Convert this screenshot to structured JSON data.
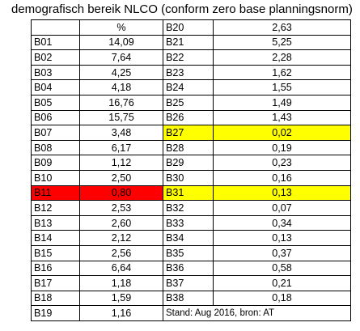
{
  "title": "demografisch bereik NLCO (conform zero base planningsnorm)",
  "header": {
    "left_code": "",
    "left_value": "%",
    "right_code": "B20",
    "right_value": "2,63"
  },
  "rows": [
    {
      "left_code": "B01",
      "left_value": "14,09",
      "right_code": "B21",
      "right_value": "5,25",
      "highlight_left": "",
      "highlight_right": ""
    },
    {
      "left_code": "B02",
      "left_value": "7,64",
      "right_code": "B22",
      "right_value": "2,28",
      "highlight_left": "",
      "highlight_right": ""
    },
    {
      "left_code": "B03",
      "left_value": "4,25",
      "right_code": "B23",
      "right_value": "1,62",
      "highlight_left": "",
      "highlight_right": ""
    },
    {
      "left_code": "B04",
      "left_value": "4,18",
      "right_code": "B24",
      "right_value": "1,55",
      "highlight_left": "",
      "highlight_right": ""
    },
    {
      "left_code": "B05",
      "left_value": "16,76",
      "right_code": "B25",
      "right_value": "1,49",
      "highlight_left": "",
      "highlight_right": ""
    },
    {
      "left_code": "B06",
      "left_value": "15,75",
      "right_code": "B26",
      "right_value": "1,43",
      "highlight_left": "",
      "highlight_right": ""
    },
    {
      "left_code": "B07",
      "left_value": "3,48",
      "right_code": "B27",
      "right_value": "0,02",
      "highlight_left": "",
      "highlight_right": "yellow"
    },
    {
      "left_code": "B08",
      "left_value": "6,17",
      "right_code": "B28",
      "right_value": "0,19",
      "highlight_left": "",
      "highlight_right": ""
    },
    {
      "left_code": "B09",
      "left_value": "1,12",
      "right_code": "B29",
      "right_value": "0,23",
      "highlight_left": "",
      "highlight_right": ""
    },
    {
      "left_code": "B10",
      "left_value": "2,50",
      "right_code": "B30",
      "right_value": "0,16",
      "highlight_left": "",
      "highlight_right": ""
    },
    {
      "left_code": "B11",
      "left_value": "0,80",
      "right_code": "B31",
      "right_value": "0,13",
      "highlight_left": "red",
      "highlight_right": "yellow"
    },
    {
      "left_code": "B12",
      "left_value": "2,53",
      "right_code": "B32",
      "right_value": "0,07",
      "highlight_left": "",
      "highlight_right": ""
    },
    {
      "left_code": "B13",
      "left_value": "2,60",
      "right_code": "B33",
      "right_value": "0,34",
      "highlight_left": "",
      "highlight_right": ""
    },
    {
      "left_code": "B14",
      "left_value": "2,12",
      "right_code": "B34",
      "right_value": "0,13",
      "highlight_left": "",
      "highlight_right": ""
    },
    {
      "left_code": "B15",
      "left_value": "2,56",
      "right_code": "B35",
      "right_value": "0,37",
      "highlight_left": "",
      "highlight_right": ""
    },
    {
      "left_code": "B16",
      "left_value": "6,64",
      "right_code": "B36",
      "right_value": "0,58",
      "highlight_left": "",
      "highlight_right": ""
    },
    {
      "left_code": "B17",
      "left_value": "1,18",
      "right_code": "B37",
      "right_value": "0,21",
      "highlight_left": "",
      "highlight_right": ""
    },
    {
      "left_code": "B18",
      "left_value": "1,59",
      "right_code": "B38",
      "right_value": "0,18",
      "highlight_left": "",
      "highlight_right": ""
    }
  ],
  "last_row": {
    "left_code": "B19",
    "left_value": "1,16"
  },
  "footer": "Stand: Aug 2016, bron: AT",
  "colors": {
    "red_highlight": "#ff0000",
    "yellow_highlight": "#ffff00",
    "border": "#000000"
  }
}
